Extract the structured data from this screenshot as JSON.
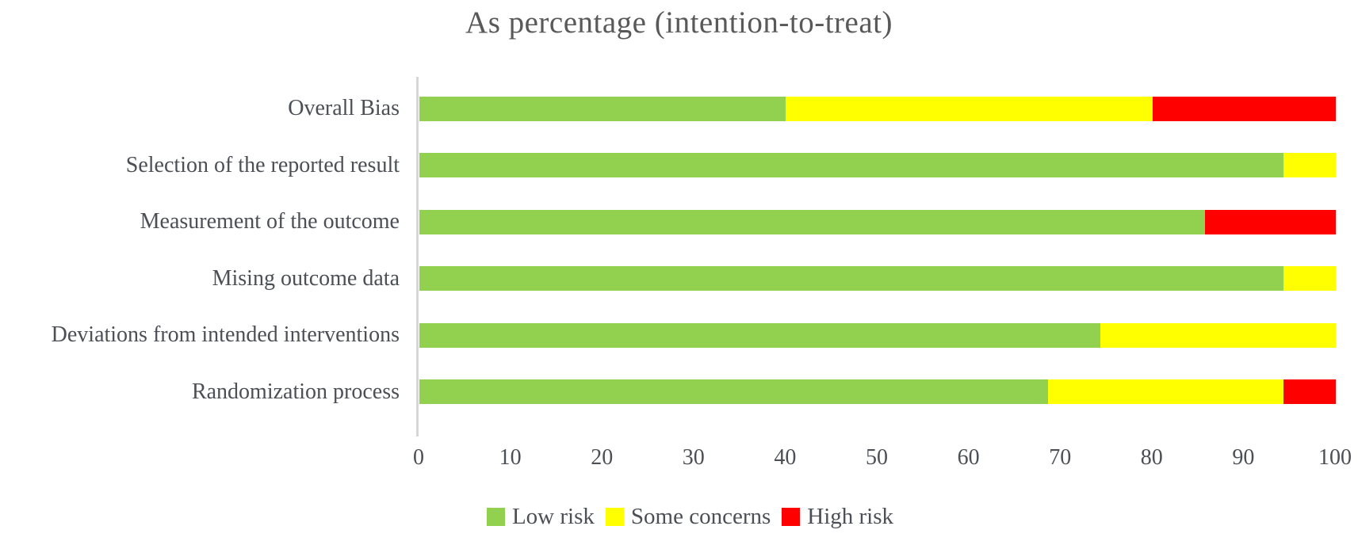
{
  "title": "As percentage (intention-to-treat)",
  "colors": {
    "low_risk": "#92d050",
    "some_concerns": "#ffff00",
    "high_risk": "#ff0000",
    "axis_line": "#d6d6d6",
    "text": "#4c4f56",
    "title_text": "#595959"
  },
  "legend": {
    "items": [
      {
        "label": "Low risk",
        "color": "#92d050",
        "key": "low-risk"
      },
      {
        "label": "Some concerns",
        "color": "#ffff00",
        "key": "some-concerns"
      },
      {
        "label": "High risk",
        "color": "#ff0000",
        "key": "high-risk"
      }
    ]
  },
  "chart_data": {
    "type": "bar",
    "orientation": "horizontal",
    "stacked": true,
    "title": "As percentage (intention-to-treat)",
    "categories": [
      "Overall Bias",
      "Selection of the reported result",
      "Measurement of the outcome",
      "Mising outcome data",
      "Deviations from intended interventions",
      "Randomization process"
    ],
    "categories_order": "top-to-bottom",
    "series": [
      {
        "name": "Low risk",
        "color": "#92d050",
        "values": [
          40,
          94.3,
          85.7,
          94.3,
          74.3,
          68.6
        ]
      },
      {
        "name": "Some concerns",
        "color": "#ffff00",
        "values": [
          40,
          5.7,
          0,
          5.7,
          25.7,
          25.7
        ]
      },
      {
        "name": "High risk",
        "color": "#ff0000",
        "values": [
          20,
          0,
          14.3,
          0,
          0,
          5.7
        ]
      }
    ],
    "xlabel": "",
    "ylabel": "",
    "xlim": [
      0,
      100
    ],
    "x_ticks": [
      0,
      10,
      20,
      30,
      40,
      50,
      60,
      70,
      80,
      90,
      100
    ],
    "grid": false,
    "legend_position": "bottom"
  }
}
